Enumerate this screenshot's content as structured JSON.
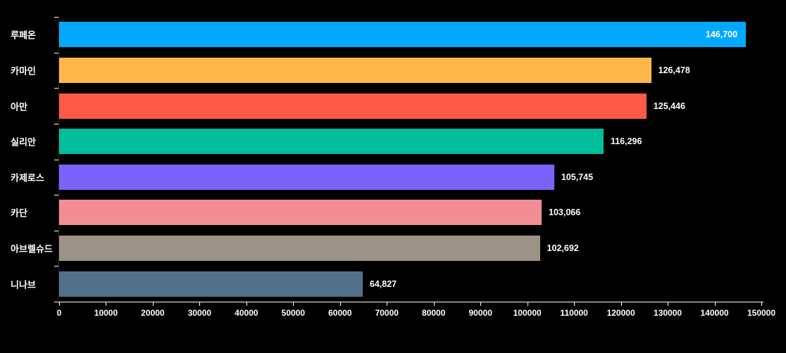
{
  "chart_data": {
    "type": "bar",
    "orientation": "horizontal",
    "title": "",
    "xlabel": "",
    "ylabel": "",
    "categories": [
      "루페온",
      "카마인",
      "아만",
      "실리안",
      "카제로스",
      "카단",
      "아브렐슈드",
      "니나브"
    ],
    "values": [
      146700,
      126478,
      125446,
      116296,
      105745,
      103066,
      102692,
      64827
    ],
    "value_labels": [
      "146,700",
      "126,478",
      "125,446",
      "116,296",
      "105,745",
      "103,066",
      "102,692",
      "64,827"
    ],
    "bar_colors": [
      "#00a8ff",
      "#ffb74a",
      "#ff5a47",
      "#00bd9c",
      "#7a63fb",
      "#f28d95",
      "#9b9386",
      "#53708a"
    ],
    "value_label_placement": [
      "inside",
      "outside",
      "outside",
      "outside",
      "outside",
      "outside",
      "outside",
      "outside"
    ],
    "xlim": [
      0,
      150000
    ],
    "xticks": [
      0,
      10000,
      20000,
      30000,
      40000,
      50000,
      60000,
      70000,
      80000,
      90000,
      100000,
      110000,
      120000,
      130000,
      140000,
      150000
    ],
    "xtick_labels": [
      "0",
      "10000",
      "20000",
      "30000",
      "40000",
      "50000",
      "60000",
      "70000",
      "80000",
      "90000",
      "100000",
      "110000",
      "120000",
      "130000",
      "140000",
      "150000"
    ],
    "grid": false,
    "legend": "none",
    "background_color": "#000000",
    "text_color": "#ffffff",
    "axis_color": "#ffffff"
  }
}
